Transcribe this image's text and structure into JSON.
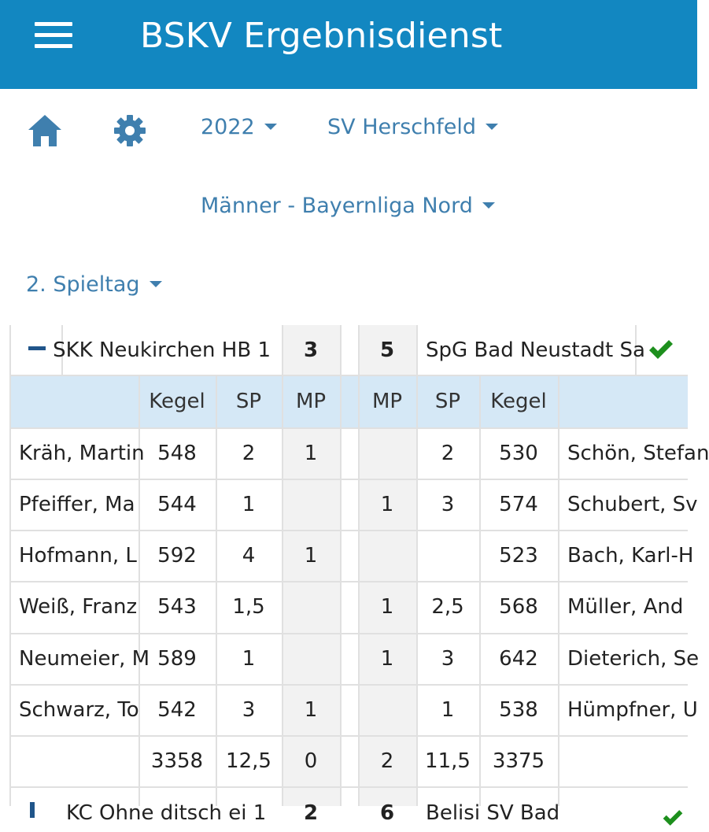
{
  "app": {
    "title": "BSKV Ergebnisdienst"
  },
  "icons": {
    "menu": "hamburger-menu-icon",
    "home": "home-icon",
    "settings": "gear-icon",
    "dropdown": "caret-down-icon",
    "expanded": "minus-icon",
    "confirmed": "checkmark-icon"
  },
  "colors": {
    "appbar": "#1287c1",
    "link": "#3f7fae",
    "header_band": "#d5e8f6",
    "check": "#1d8f1d"
  },
  "filters": {
    "year": "2022",
    "club": "SV Herschfeld",
    "league": "Männer - Bayernliga Nord",
    "matchday": "2. Spieltag"
  },
  "match": {
    "home_team": "SKK Neukirchen HB 1",
    "home_score": "3",
    "away_score": "5",
    "away_team": "SpG Bad Neustadt Sa",
    "columns": {
      "kegel": "Kegel",
      "sp": "SP",
      "mp": "MP"
    },
    "rows": [
      {
        "home_player": "Kräh, Martin",
        "home_kegel": "548",
        "home_sp": "2",
        "home_mp": "1",
        "away_mp": "",
        "away_sp": "2",
        "away_kegel": "530",
        "away_player": "Schön, Stefan"
      },
      {
        "home_player": "Pfeiffer, Ma",
        "home_kegel": "544",
        "home_sp": "1",
        "home_mp": "",
        "away_mp": "1",
        "away_sp": "3",
        "away_kegel": "574",
        "away_player": "Schubert, Sv"
      },
      {
        "home_player": "Hofmann, L",
        "home_kegel": "592",
        "home_sp": "4",
        "home_mp": "1",
        "away_mp": "",
        "away_sp": "",
        "away_kegel": "523",
        "away_player": "Bach, Karl-H"
      },
      {
        "home_player": "Weiß, Franz",
        "home_kegel": "543",
        "home_sp": "1,5",
        "home_mp": "",
        "away_mp": "1",
        "away_sp": "2,5",
        "away_kegel": "568",
        "away_player": "Müller, And"
      },
      {
        "home_player": "Neumeier, M",
        "home_kegel": "589",
        "home_sp": "1",
        "home_mp": "",
        "away_mp": "1",
        "away_sp": "3",
        "away_kegel": "642",
        "away_player": "Dieterich, Se"
      },
      {
        "home_player": "Schwarz, To",
        "home_kegel": "542",
        "home_sp": "3",
        "home_mp": "1",
        "away_mp": "",
        "away_sp": "1",
        "away_kegel": "538",
        "away_player": "Hümpfner, U"
      }
    ],
    "totals": {
      "home_kegel": "3358",
      "home_sp": "12,5",
      "home_mp": "0",
      "away_mp": "2",
      "away_sp": "11,5",
      "away_kegel": "3375"
    }
  },
  "next_match": {
    "home_team": "KC Ohne ditsch ei 1",
    "home_score": "2",
    "away_score": "6",
    "away_team": "Belisi SV Bad"
  }
}
